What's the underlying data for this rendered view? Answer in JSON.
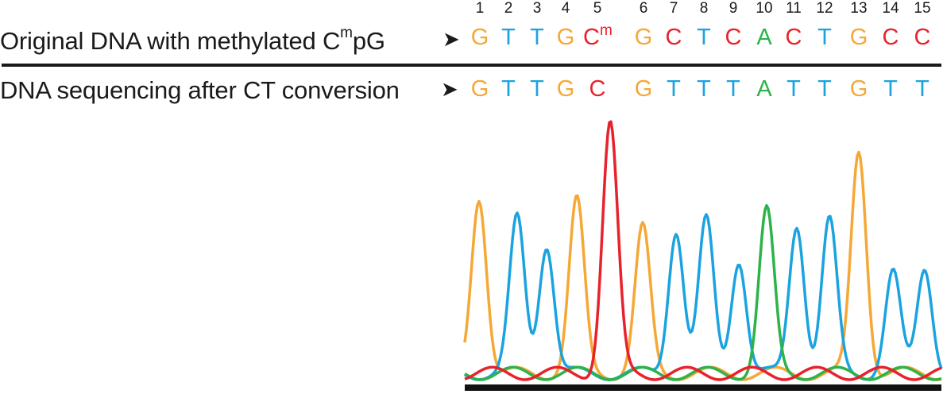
{
  "row1": {
    "label": "Original DNA with methylated C",
    "sup": "m",
    "tail": "pG",
    "arrow": "➤"
  },
  "row2": {
    "label": "DNA sequencing after CT conversion",
    "arrow": "➤"
  },
  "positions": [
    "1",
    "2",
    "3",
    "4",
    "5",
    "6",
    "7",
    "8",
    "9",
    "10",
    "11",
    "12",
    "13",
    "14",
    "15"
  ],
  "original_bases": [
    {
      "b": "G",
      "sup": "",
      "color": "#f5a836"
    },
    {
      "b": "T",
      "sup": "",
      "color": "#1ba3e0"
    },
    {
      "b": "T",
      "sup": "",
      "color": "#1ba3e0"
    },
    {
      "b": "G",
      "sup": "",
      "color": "#f5a836"
    },
    {
      "b": "C",
      "sup": "m",
      "color": "#e8222c"
    },
    {
      "b": "G",
      "sup": "",
      "color": "#f5a836"
    },
    {
      "b": "C",
      "sup": "",
      "color": "#e8222c"
    },
    {
      "b": "T",
      "sup": "",
      "color": "#1ba3e0"
    },
    {
      "b": "C",
      "sup": "",
      "color": "#e8222c"
    },
    {
      "b": "A",
      "sup": "",
      "color": "#2db34a"
    },
    {
      "b": "C",
      "sup": "",
      "color": "#e8222c"
    },
    {
      "b": "T",
      "sup": "",
      "color": "#1ba3e0"
    },
    {
      "b": "G",
      "sup": "",
      "color": "#f5a836"
    },
    {
      "b": "C",
      "sup": "",
      "color": "#e8222c"
    },
    {
      "b": "C",
      "sup": "",
      "color": "#e8222c"
    }
  ],
  "converted_bases": [
    {
      "b": "G",
      "color": "#f5a836"
    },
    {
      "b": "T",
      "color": "#1ba3e0"
    },
    {
      "b": "T",
      "color": "#1ba3e0"
    },
    {
      "b": "G",
      "color": "#f5a836"
    },
    {
      "b": "C",
      "color": "#e8222c"
    },
    {
      "b": "G",
      "color": "#f5a836"
    },
    {
      "b": "T",
      "color": "#1ba3e0"
    },
    {
      "b": "T",
      "color": "#1ba3e0"
    },
    {
      "b": "T",
      "color": "#1ba3e0"
    },
    {
      "b": "A",
      "color": "#2db34a"
    },
    {
      "b": "T",
      "color": "#1ba3e0"
    },
    {
      "b": "T",
      "color": "#1ba3e0"
    },
    {
      "b": "G",
      "color": "#f5a836"
    },
    {
      "b": "T",
      "color": "#1ba3e0"
    },
    {
      "b": "T",
      "color": "#1ba3e0"
    }
  ],
  "trace_colors": {
    "G": "#f5a836",
    "T": "#1ba3e0",
    "C": "#e8222c",
    "A": "#2db34a",
    "baseline": "#111111"
  },
  "peak_heights": [
    0.71,
    0.62,
    0.52,
    0.69,
    1.0,
    0.58,
    0.58,
    0.61,
    0.46,
    0.65,
    0.6,
    0.61,
    0.89,
    0.4,
    0.43
  ]
}
